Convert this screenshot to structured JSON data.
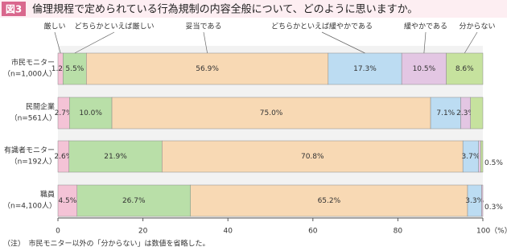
{
  "chart_data": {
    "type": "stacked_bar_horizontal",
    "figure_label": "図3",
    "title": "倫理規程で定められている行為規制の内容全般について、どのように思いますか。",
    "categories": [
      "市民モニター",
      "民間企業",
      "有識者モニター",
      "職員"
    ],
    "sample_sizes": [
      "（n=1,000人）",
      "（n=561人）",
      "（n=192人）",
      "（n=4,100人）"
    ],
    "series": [
      {
        "name": "厳しい",
        "color": "#f4c3d6",
        "values": [
          1.2,
          2.7,
          2.6,
          4.5
        ],
        "value_labels": [
          "1.2%",
          "2.7%",
          "2.6%",
          "4.5%"
        ]
      },
      {
        "name": "どちらかといえば厳しい",
        "color": "#b9dfa8",
        "values": [
          5.5,
          10.0,
          21.9,
          26.7
        ],
        "value_labels": [
          "5.5%",
          "10.0%",
          "21.9%",
          "26.7%"
        ]
      },
      {
        "name": "妥当である",
        "color": "#f8d9b4",
        "values": [
          56.9,
          75.0,
          70.8,
          65.2
        ],
        "value_labels": [
          "56.9%",
          "75.0%",
          "70.8%",
          "65.2%"
        ]
      },
      {
        "name": "どちらかといえば緩やかである",
        "color": "#bcdcf2",
        "values": [
          17.3,
          7.1,
          3.7,
          3.3
        ],
        "value_labels": [
          "17.3%",
          "7.1%",
          "3.7%",
          "3.3%"
        ]
      },
      {
        "name": "緩やかである",
        "color": "#e3c6e3",
        "values": [
          10.5,
          2.3,
          0.5,
          0.3
        ],
        "value_labels": [
          "10.5%",
          "2.3%",
          "0.5%",
          "0.3%"
        ]
      },
      {
        "name": "分からない",
        "color": "#c6e29e",
        "values": [
          8.6,
          2.9,
          0.5,
          0.0
        ],
        "value_labels": [
          "8.6%",
          null,
          null,
          null
        ]
      }
    ],
    "xlim": [
      0,
      100
    ],
    "xticks": [
      0,
      20,
      40,
      60,
      80,
      {
        "value": 100,
        "label": "100（%）"
      }
    ],
    "note": "（注）　市民モニター以外の「分からない」は数値を省略した。"
  }
}
